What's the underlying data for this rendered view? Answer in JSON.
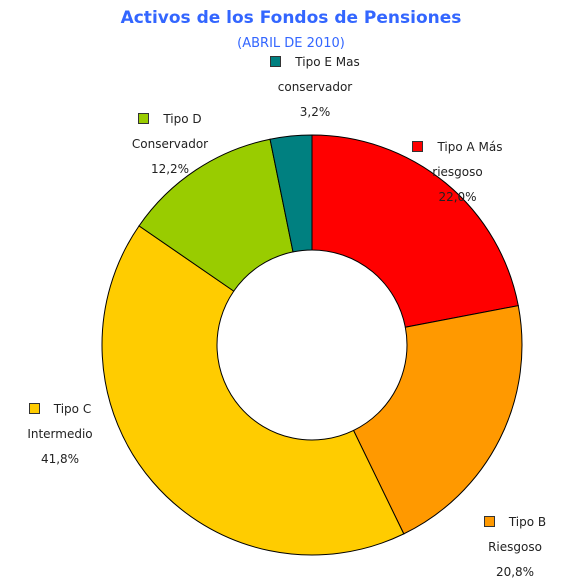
{
  "chart_data": {
    "type": "donut",
    "title": "Activos de los Fondos de Pensiones",
    "subtitle": "(ABRIL DE 2010)",
    "categories": [
      "Tipo A Más riesgoso",
      "Tipo B Riesgoso",
      "Tipo C Intermedio",
      "Tipo D Conservador",
      "Tipo E Mas conservador"
    ],
    "values": [
      22.0,
      20.8,
      41.8,
      12.2,
      3.2
    ],
    "value_labels": [
      "22,0%",
      "20,8%",
      "41,8%",
      "12,2%",
      "3,2%"
    ],
    "colors": [
      "#ff0000",
      "#ff9900",
      "#ffcc00",
      "#99cc00",
      "#008080"
    ]
  }
}
